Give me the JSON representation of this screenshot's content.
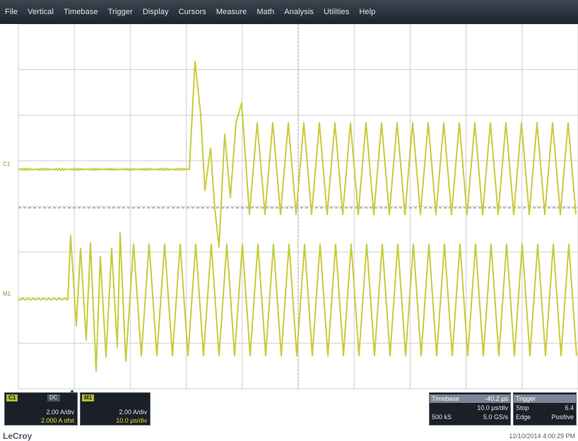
{
  "menu": [
    "File",
    "Vertical",
    "Timebase",
    "Trigger",
    "Display",
    "Cursors",
    "Measure",
    "Math",
    "Analysis",
    "Utilities",
    "Help"
  ],
  "channels": [
    {
      "tag": "C1",
      "small": "DC",
      "vdiv": "2.00 A/div",
      "offset": "2.000 A ofst"
    },
    {
      "tag": "M1",
      "small": "",
      "vdiv": "2.00 A/div",
      "offset": "10.0 µs/div"
    }
  ],
  "trace_labels": {
    "c1": "C1",
    "m1": "M1"
  },
  "timebase": {
    "title": "Timebase",
    "delay": "-40.2 µs",
    "per_div": "10.0 µs/div",
    "samples": "500 kS",
    "rate": "5.0 GS/s"
  },
  "trigger": {
    "title": "Trigger",
    "mode": "Stop",
    "type": "Edge",
    "level": "6.4",
    "slope": "Positive"
  },
  "brand": "LeCroy",
  "timestamp": "12/10/2014 4:00:29 PM",
  "colors": {
    "trace": "#c8cc3a",
    "menubar": "#2b323c",
    "grid": "#cfcfcf"
  }
}
